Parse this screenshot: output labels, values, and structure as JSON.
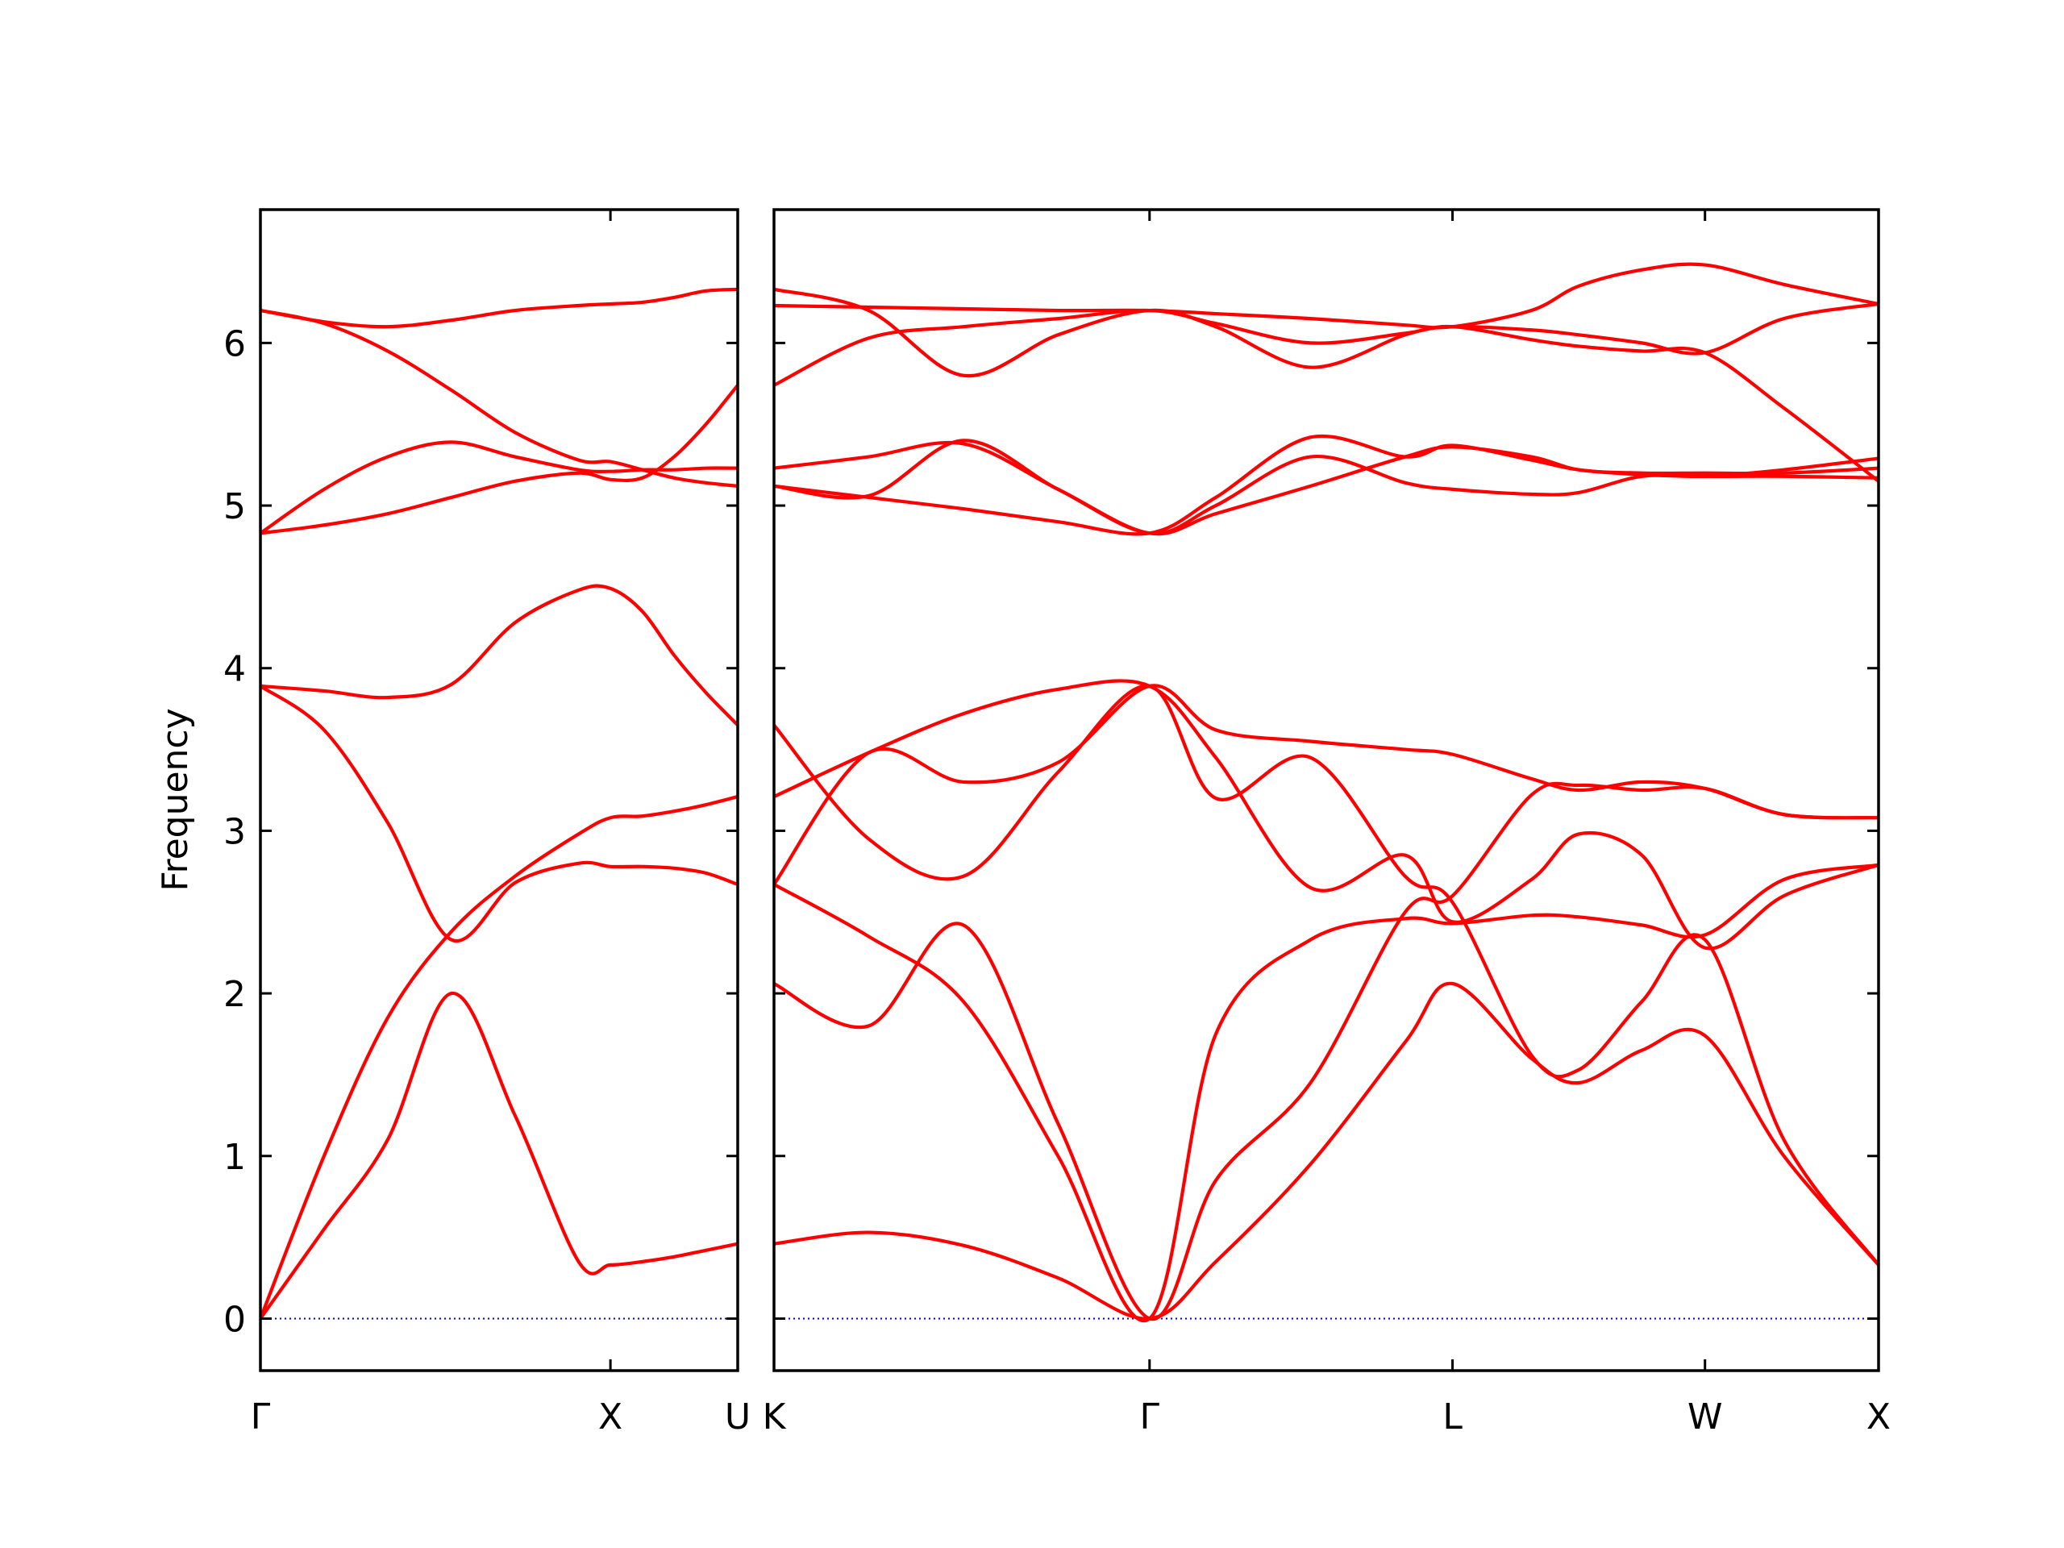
{
  "chart_data": {
    "type": "line",
    "title": "",
    "ylabel": "Frequency",
    "ylim": [
      -0.32,
      6.82
    ],
    "yticks": [
      0,
      1,
      2,
      3,
      4,
      5,
      6
    ],
    "grid": false,
    "line_color": "#ff0000",
    "zero_line_color": "#0000cd",
    "zero_line_style": "dotted",
    "panels": [
      {
        "path": "Γ-X-U",
        "x_range": [
          0,
          1.5
        ],
        "tick_positions": [
          0,
          1.1,
          1.5
        ],
        "tick_labels": [
          "Γ",
          "X",
          "U"
        ],
        "bands": [
          {
            "x": [
              0,
              0.2,
              0.4,
              0.6,
              0.8,
              1.0,
              1.1,
              1.2,
              1.3,
              1.4,
              1.5
            ],
            "y": [
              0,
              0.55,
              1.1,
              2.0,
              1.25,
              0.35,
              0.33,
              0.35,
              0.38,
              0.42,
              0.46
            ]
          },
          {
            "x": [
              0,
              0.2,
              0.4,
              0.6,
              0.8,
              1.0,
              1.1,
              1.2,
              1.3,
              1.4,
              1.5
            ],
            "y": [
              0,
              1.0,
              1.85,
              2.38,
              2.72,
              2.98,
              3.08,
              3.09,
              3.12,
              3.16,
              3.21
            ]
          },
          {
            "x": [
              0,
              0.2,
              0.4,
              0.6,
              0.8,
              1.0,
              1.1,
              1.2,
              1.3,
              1.4,
              1.5
            ],
            "y": [
              3.89,
              3.62,
              3.05,
              2.33,
              2.68,
              2.8,
              2.78,
              2.78,
              2.77,
              2.74,
              2.67
            ]
          },
          {
            "x": [
              0,
              0.2,
              0.4,
              0.6,
              0.8,
              1.0,
              1.1,
              1.2,
              1.3,
              1.4,
              1.5
            ],
            "y": [
              3.89,
              3.86,
              3.82,
              3.9,
              4.28,
              4.48,
              4.49,
              4.35,
              4.08,
              3.85,
              3.65
            ]
          },
          {
            "x": [
              0,
              0.2,
              0.4,
              0.6,
              0.8,
              1.0,
              1.1,
              1.2,
              1.3,
              1.4,
              1.5
            ],
            "y": [
              4.83,
              5.1,
              5.3,
              5.39,
              5.3,
              5.22,
              5.21,
              5.22,
              5.22,
              5.23,
              5.23
            ]
          },
          {
            "x": [
              0,
              0.2,
              0.4,
              0.6,
              0.8,
              1.0,
              1.1,
              1.2,
              1.3,
              1.4,
              1.5
            ],
            "y": [
              4.83,
              4.88,
              4.95,
              5.05,
              5.15,
              5.2,
              5.16,
              5.17,
              5.3,
              5.5,
              5.74
            ]
          },
          {
            "x": [
              0,
              0.2,
              0.4,
              0.6,
              0.8,
              1.0,
              1.1,
              1.2,
              1.3,
              1.4,
              1.5
            ],
            "y": [
              6.2,
              6.13,
              6.1,
              6.14,
              6.2,
              6.23,
              6.24,
              6.25,
              6.28,
              6.32,
              6.33
            ]
          },
          {
            "x": [
              0,
              0.2,
              0.4,
              0.6,
              0.8,
              1.0,
              1.1,
              1.2,
              1.3,
              1.4,
              1.5
            ],
            "y": [
              6.2,
              6.12,
              5.95,
              5.71,
              5.45,
              5.28,
              5.27,
              5.22,
              5.17,
              5.14,
              5.12
            ]
          }
        ]
      },
      {
        "path": "K-Γ-L-W-X",
        "x_range": [
          0,
          3.5
        ],
        "tick_positions": [
          0,
          1.19,
          2.15,
          2.95,
          3.5
        ],
        "tick_labels": [
          "K",
          "Γ",
          "L",
          "W",
          "X"
        ],
        "bands": [
          {
            "x": [
              0,
              0.3,
              0.6,
              0.9,
              1.19,
              1.4,
              1.7,
              2.0,
              2.15,
              2.4,
              2.55,
              2.75,
              2.95,
              3.2,
              3.5
            ],
            "y": [
              0.46,
              0.53,
              0.45,
              0.25,
              0.0,
              0.35,
              0.95,
              1.7,
              2.06,
              1.6,
              1.45,
              1.65,
              1.74,
              1.0,
              0.33
            ]
          },
          {
            "x": [
              0,
              0.3,
              0.6,
              0.9,
              1.19,
              1.4,
              1.7,
              2.0,
              2.15,
              2.4,
              2.55,
              2.75,
              2.95,
              3.2,
              3.5
            ],
            "y": [
              2.06,
              1.8,
              2.42,
              1.2,
              0.0,
              0.85,
              1.45,
              2.5,
              2.6,
              3.22,
              3.28,
              3.25,
              3.26,
              3.1,
              3.08
            ]
          },
          {
            "x": [
              0,
              0.3,
              0.6,
              0.9,
              1.19,
              1.4,
              1.7,
              2.0,
              2.15,
              2.4,
              2.55,
              2.75,
              2.95,
              3.2,
              3.5
            ],
            "y": [
              2.67,
              2.35,
              1.95,
              1.0,
              0.0,
              1.75,
              2.33,
              2.46,
              2.43,
              2.48,
              2.47,
              2.42,
              2.36,
              2.7,
              2.79
            ]
          },
          {
            "x": [
              0,
              0.3,
              0.6,
              0.9,
              1.19,
              1.4,
              1.7,
              2.0,
              2.15,
              2.4,
              2.55,
              2.75,
              2.95,
              3.2,
              3.5
            ],
            "y": [
              2.67,
              3.48,
              3.3,
              3.42,
              3.89,
              3.62,
              3.55,
              3.5,
              3.47,
              3.32,
              3.25,
              3.3,
              3.26,
              3.1,
              3.08
            ]
          },
          {
            "x": [
              0,
              0.3,
              0.6,
              0.9,
              1.19,
              1.4,
              1.7,
              2.0,
              2.15,
              2.4,
              2.55,
              2.75,
              2.95,
              3.2,
              3.5
            ],
            "y": [
              3.21,
              3.48,
              3.72,
              3.87,
              3.89,
              3.45,
              2.65,
              2.85,
              2.44,
              2.7,
              2.98,
              2.85,
              2.28,
              2.6,
              2.79
            ]
          },
          {
            "x": [
              0,
              0.3,
              0.6,
              0.9,
              1.19,
              1.4,
              1.7,
              2.0,
              2.15,
              2.4,
              2.55,
              2.75,
              2.95,
              3.2,
              3.5
            ],
            "y": [
              3.65,
              2.95,
              2.72,
              3.36,
              3.89,
              3.2,
              3.45,
              2.72,
              2.56,
              1.62,
              1.53,
              1.95,
              2.33,
              1.1,
              0.33
            ]
          },
          {
            "x": [
              0,
              0.3,
              0.6,
              0.9,
              1.19,
              1.4,
              1.7,
              2.0,
              2.15,
              2.4,
              2.55,
              2.75,
              2.95,
              3.2,
              3.5
            ],
            "y": [
              5.12,
              5.06,
              5.4,
              5.1,
              4.83,
              5.0,
              5.3,
              5.14,
              5.1,
              5.07,
              5.08,
              5.18,
              5.18,
              5.22,
              5.29
            ]
          },
          {
            "x": [
              0,
              0.3,
              0.6,
              0.9,
              1.19,
              1.4,
              1.7,
              2.0,
              2.15,
              2.4,
              2.55,
              2.75,
              2.95,
              3.2,
              3.5
            ],
            "y": [
              5.12,
              5.05,
              4.98,
              4.9,
              4.83,
              5.05,
              5.42,
              5.3,
              5.37,
              5.28,
              5.22,
              5.19,
              5.18,
              5.18,
              5.17
            ]
          },
          {
            "x": [
              0,
              0.3,
              0.6,
              0.9,
              1.19,
              1.4,
              1.7,
              2.0,
              2.15,
              2.4,
              2.55,
              2.75,
              2.95,
              3.2,
              3.5
            ],
            "y": [
              5.23,
              5.3,
              5.38,
              5.1,
              4.83,
              4.95,
              5.12,
              5.3,
              5.36,
              5.3,
              5.22,
              5.2,
              5.2,
              5.2,
              5.23
            ]
          },
          {
            "x": [
              0,
              0.3,
              0.6,
              0.9,
              1.19,
              1.4,
              1.7,
              2.0,
              2.15,
              2.4,
              2.55,
              2.75,
              2.95,
              3.2,
              3.5
            ],
            "y": [
              5.74,
              6.03,
              6.1,
              6.15,
              6.2,
              6.12,
              6.0,
              6.06,
              6.1,
              6.02,
              5.98,
              5.95,
              5.94,
              5.6,
              5.15
            ]
          },
          {
            "x": [
              0,
              0.3,
              0.6,
              0.9,
              1.19,
              1.4,
              1.7,
              2.0,
              2.15,
              2.4,
              2.55,
              2.75,
              2.95,
              3.2,
              3.5
            ],
            "y": [
              6.33,
              6.2,
              5.8,
              6.05,
              6.2,
              6.1,
              5.85,
              6.05,
              6.1,
              6.08,
              6.05,
              6.0,
              5.94,
              6.15,
              6.24
            ]
          },
          {
            "x": [
              0,
              0.3,
              0.6,
              0.9,
              1.19,
              1.4,
              1.7,
              2.0,
              2.15,
              2.4,
              2.55,
              2.75,
              2.95,
              3.2,
              3.5
            ],
            "y": [
              6.23,
              6.22,
              6.21,
              6.2,
              6.2,
              6.18,
              6.15,
              6.11,
              6.1,
              6.2,
              6.35,
              6.45,
              6.48,
              6.36,
              6.24
            ]
          }
        ]
      }
    ]
  }
}
